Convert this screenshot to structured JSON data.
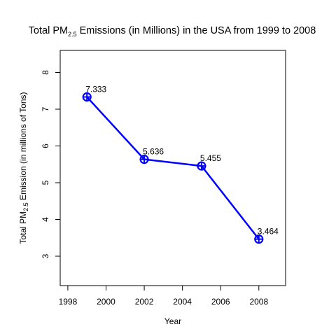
{
  "chart_data": {
    "type": "line",
    "title": {
      "prefix": "Total PM",
      "subscript": "2.5",
      "suffix": " Emissions (in Millions) in the USA from 1999 to 2008"
    },
    "xlabel": "Year",
    "ylabel": {
      "prefix": "Total PM",
      "subscript": "2.5",
      "suffix": " Emission (in millions of Tons)"
    },
    "xlim": [
      1997.6,
      2009.4
    ],
    "ylim": [
      2.2,
      8.6
    ],
    "x_ticks": [
      1998,
      2000,
      2002,
      2004,
      2006,
      2008
    ],
    "y_ticks": [
      3,
      4,
      5,
      6,
      7,
      8
    ],
    "x": [
      1999,
      2002,
      2005,
      2008
    ],
    "series": [
      {
        "values": [
          7.333,
          5.636,
          5.455,
          3.464
        ],
        "labels": [
          "7.333",
          "5.636",
          "5.455",
          "3.464"
        ],
        "color": "#0000FF",
        "marker": "circle-plus"
      }
    ],
    "grid": false,
    "legend": "none"
  }
}
